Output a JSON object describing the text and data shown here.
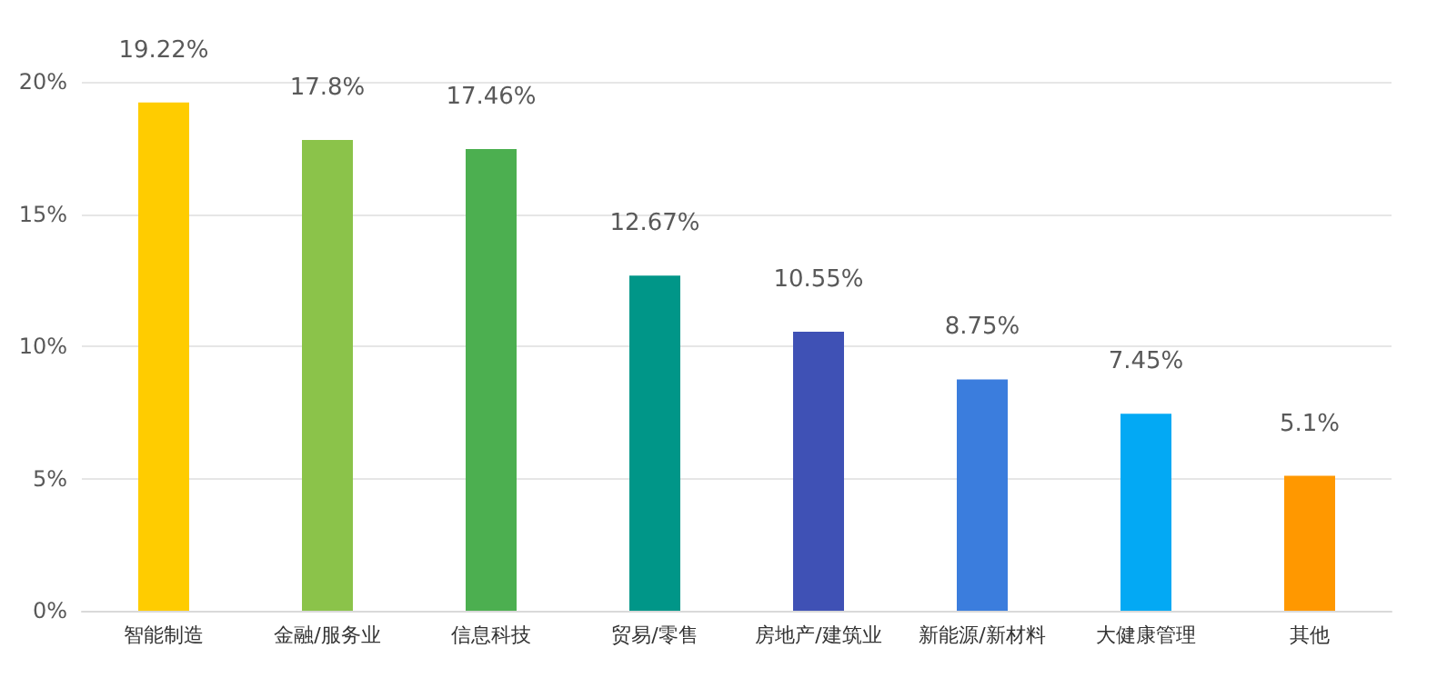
{
  "chart_data": {
    "type": "bar",
    "categories": [
      "智能制造",
      "金融/服务业",
      "信息科技",
      "贸易/零售",
      "房地产/建筑业",
      "新能源/新材料",
      "大健康管理",
      "其他"
    ],
    "values": [
      19.22,
      17.8,
      17.46,
      12.67,
      10.55,
      8.75,
      7.45,
      5.1
    ],
    "value_labels": [
      "19.22%",
      "17.8%",
      "17.46%",
      "12.67%",
      "10.55%",
      "8.75%",
      "7.45%",
      "5.1%"
    ],
    "colors": [
      "#ffcc00",
      "#8bc34a",
      "#4caf50",
      "#009688",
      "#3f51b5",
      "#3b7ddd",
      "#03a9f4",
      "#ff9800"
    ],
    "ylim": [
      0,
      20
    ],
    "yticks": [
      {
        "value": 0,
        "label": "0%"
      },
      {
        "value": 5,
        "label": "5%"
      },
      {
        "value": 10,
        "label": "10%"
      },
      {
        "value": 15,
        "label": "15%"
      },
      {
        "value": 20,
        "label": "20%"
      }
    ],
    "grid": "y"
  }
}
